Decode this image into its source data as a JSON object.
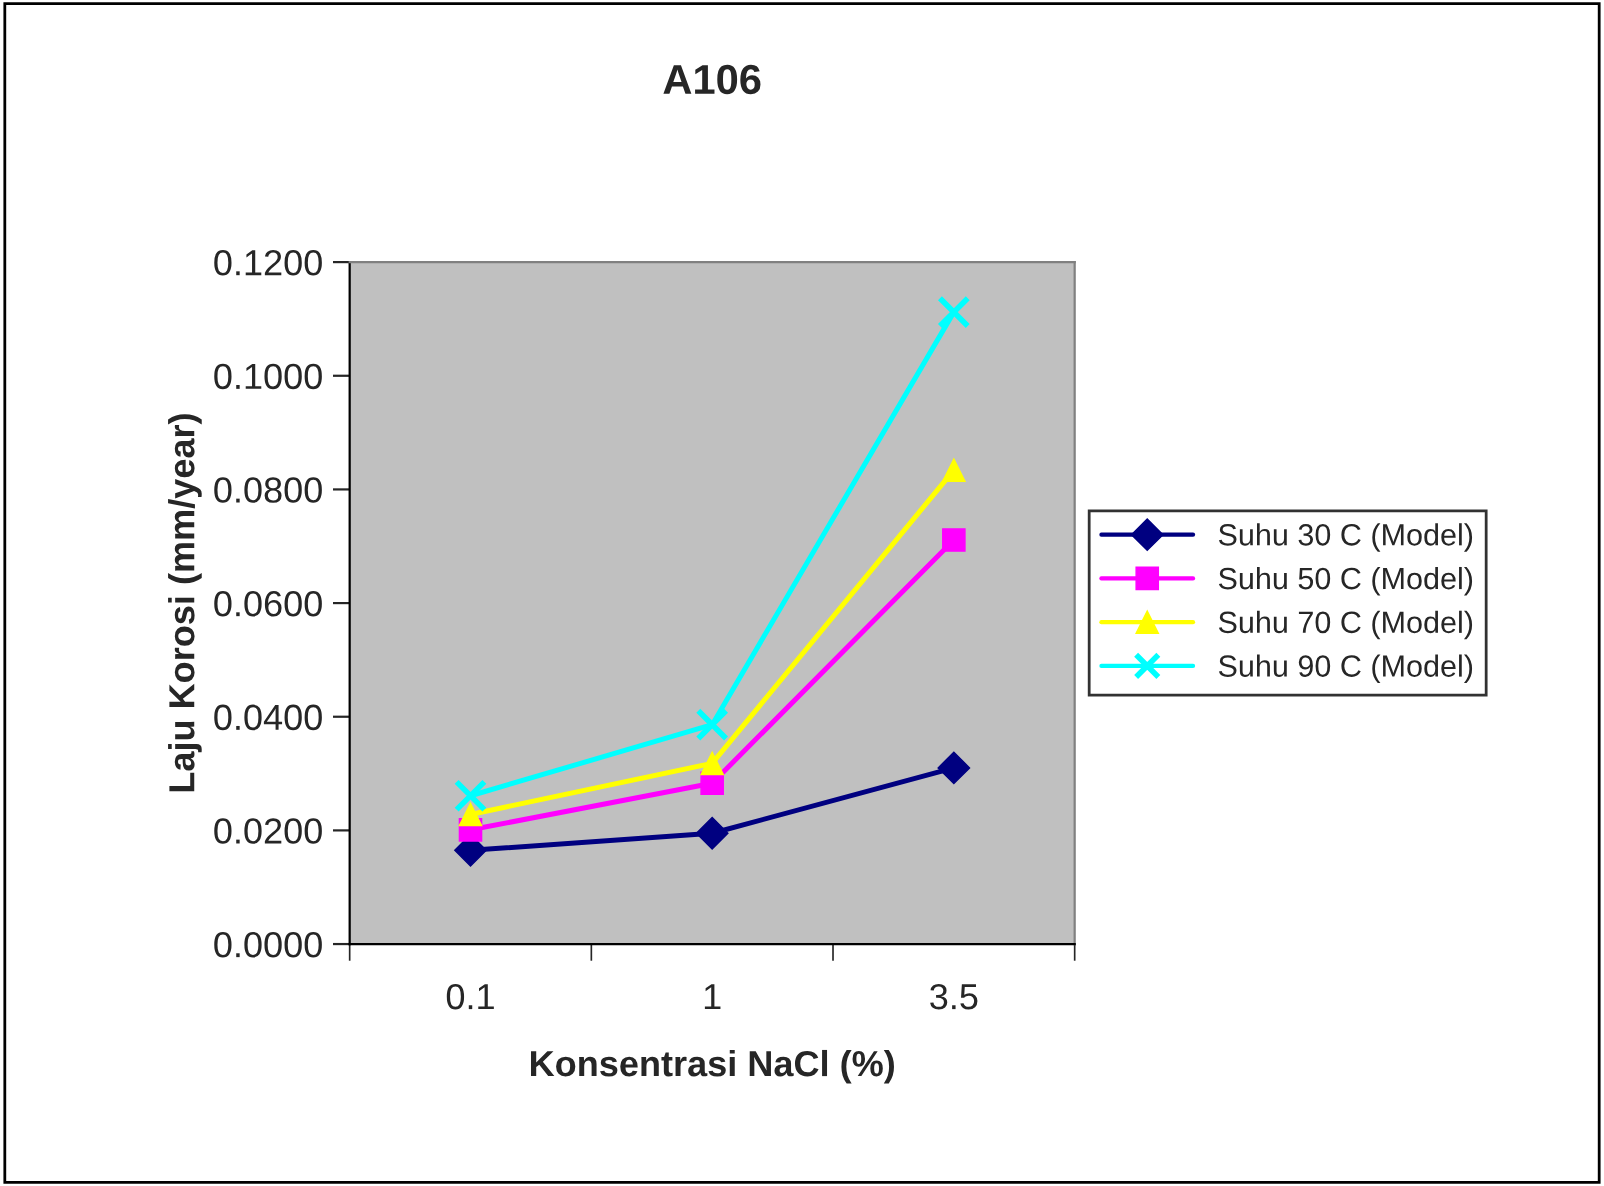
{
  "chart_data": {
    "type": "line",
    "title": "A106",
    "xlabel": "Konsentrasi NaCl (%)",
    "ylabel": "Laju Korosi (mm/year)",
    "categories": [
      "0.1",
      "1",
      "3.5"
    ],
    "series": [
      {
        "name": "Suhu 30 C (Model)",
        "color": "#000080",
        "marker": "diamond",
        "values": [
          0.0165,
          0.0195,
          0.031
        ]
      },
      {
        "name": "Suhu 50 C (Model)",
        "color": "#ff00ff",
        "marker": "square",
        "values": [
          0.0201,
          0.0283,
          0.0711
        ]
      },
      {
        "name": "Suhu 70 C (Model)",
        "color": "#ffff00",
        "marker": "triangle",
        "values": [
          0.0228,
          0.0318,
          0.0834
        ]
      },
      {
        "name": "Suhu 90 C (Model)",
        "color": "#00ffff",
        "marker": "cross",
        "values": [
          0.0261,
          0.0386,
          0.1112
        ]
      }
    ],
    "ylim": [
      0,
      0.12
    ],
    "yticks": [
      {
        "value": 0,
        "label": "0.0000"
      },
      {
        "value": 0.02,
        "label": "0.0200"
      },
      {
        "value": 0.04,
        "label": "0.0400"
      },
      {
        "value": 0.06,
        "label": "0.0600"
      },
      {
        "value": 0.08,
        "label": "0.0800"
      },
      {
        "value": 0.1,
        "label": "0.1000"
      },
      {
        "value": 0.12,
        "label": "0.1200"
      }
    ],
    "grid": false,
    "legend": "right",
    "line_style": "solid"
  }
}
